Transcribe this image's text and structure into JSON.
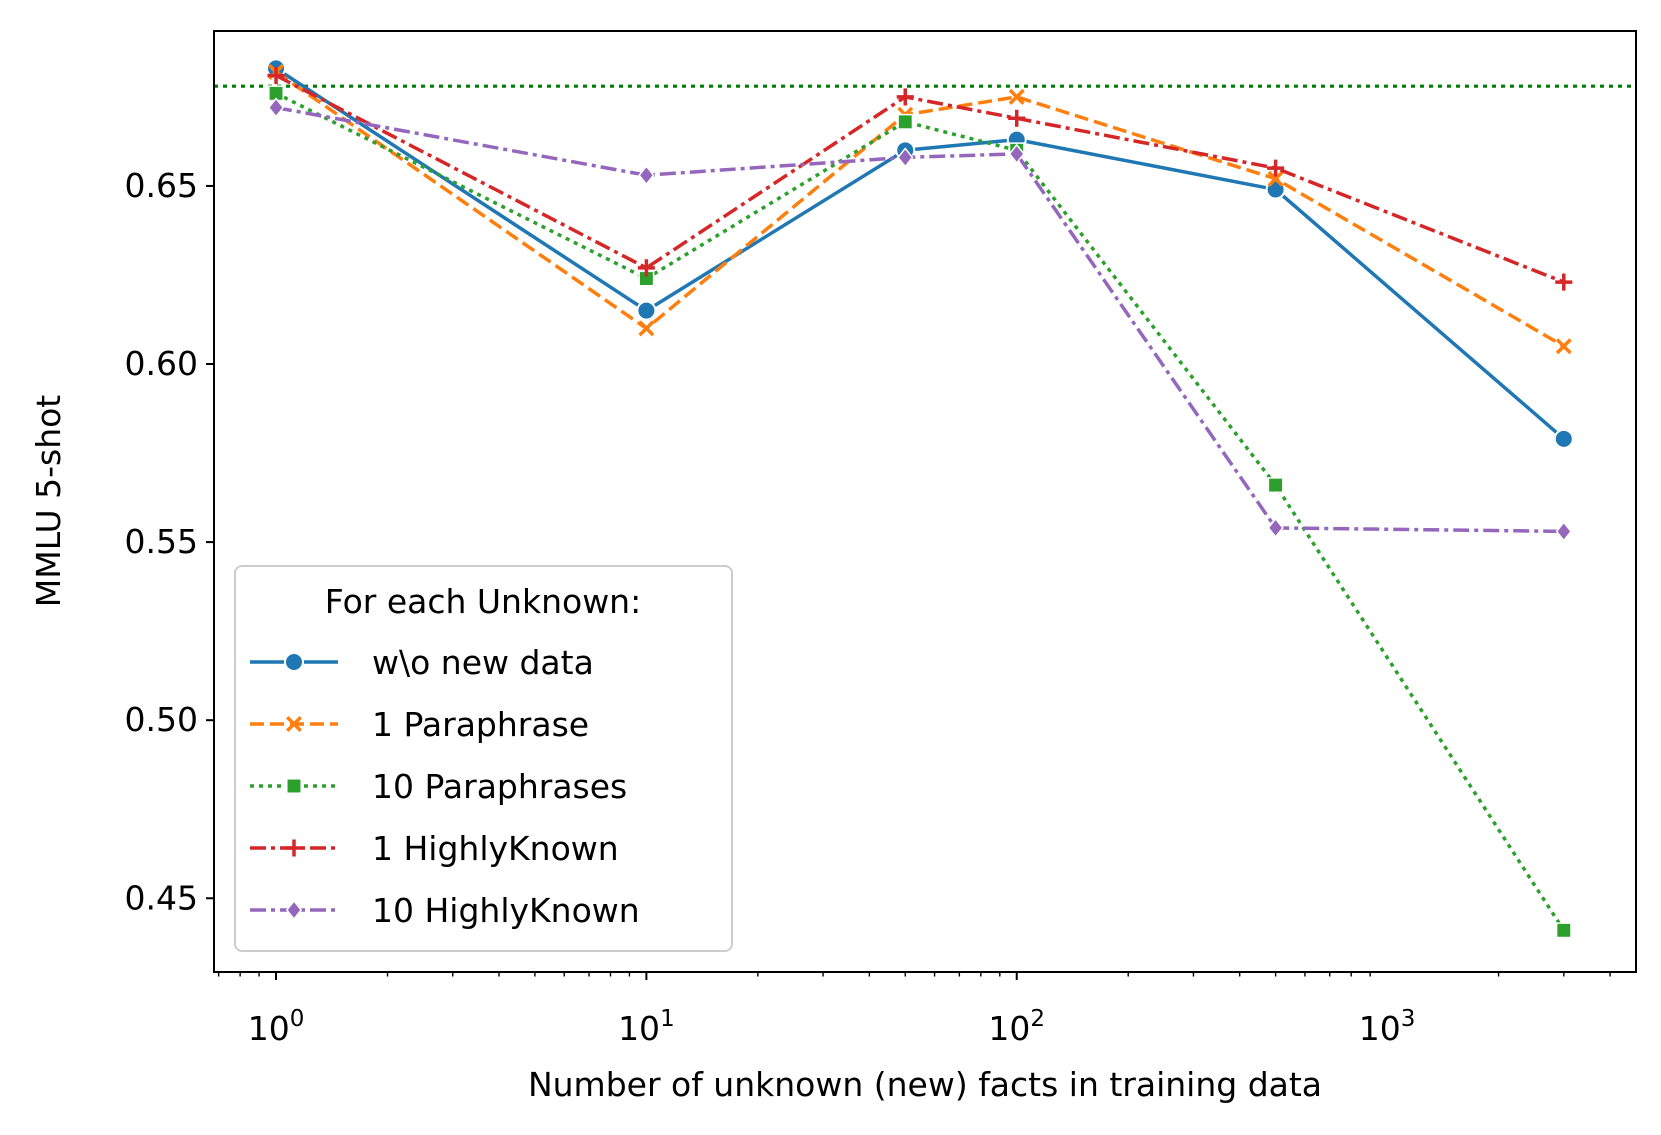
{
  "chart_data": {
    "type": "line",
    "title": "",
    "xlabel": "Number of unknown (new) facts in training data",
    "ylabel": "MMLU 5-shot",
    "xscale": "log",
    "xlim": [
      0.68,
      4700
    ],
    "ylim": [
      0.4293,
      0.6935
    ],
    "grid": false,
    "x": [
      1,
      10,
      50,
      100,
      500,
      3000
    ],
    "xticks": [
      {
        "value": 1,
        "base": "10",
        "exp": "0"
      },
      {
        "value": 10,
        "base": "10",
        "exp": "1"
      },
      {
        "value": 100,
        "base": "10",
        "exp": "2"
      },
      {
        "value": 1000,
        "base": "10",
        "exp": "3"
      }
    ],
    "yticks": [
      {
        "value": 0.45,
        "label": "0.45"
      },
      {
        "value": 0.5,
        "label": "0.50"
      },
      {
        "value": 0.55,
        "label": "0.55"
      },
      {
        "value": 0.6,
        "label": "0.60"
      },
      {
        "value": 0.65,
        "label": "0.65"
      }
    ],
    "reference_line": {
      "y": 0.678,
      "color": "#008000",
      "style": "dotted"
    },
    "legend": {
      "title": "For each Unknown:",
      "placement": "lower-left"
    },
    "series": [
      {
        "name": "w\\o new data",
        "color": "#1f77b4",
        "dash": "solid",
        "marker": "circle",
        "values": [
          0.683,
          0.615,
          0.66,
          0.663,
          0.649,
          0.579
        ]
      },
      {
        "name": "1 Paraphrase",
        "color": "#ff7f0e",
        "dash": "dashed",
        "marker": "x",
        "values": [
          0.682,
          0.61,
          0.67,
          0.675,
          0.652,
          0.605
        ]
      },
      {
        "name": "10 Paraphrases",
        "color": "#2ca02c",
        "dash": "dotted",
        "marker": "square",
        "values": [
          0.676,
          0.624,
          0.668,
          0.66,
          0.566,
          0.441
        ]
      },
      {
        "name": "1 HighlyKnown",
        "color": "#d62728",
        "dash": "dashdot",
        "marker": "plus",
        "values": [
          0.681,
          0.627,
          0.675,
          0.669,
          0.655,
          0.623
        ]
      },
      {
        "name": "10 HighlyKnown",
        "color": "#9467bd",
        "dash": "dashdot",
        "marker": "diamond",
        "values": [
          0.672,
          0.653,
          0.658,
          0.659,
          0.554,
          0.553
        ]
      }
    ]
  }
}
